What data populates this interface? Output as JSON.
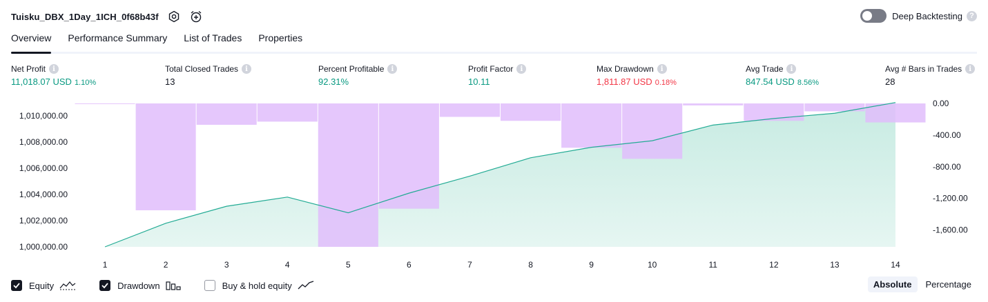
{
  "header": {
    "title": "Tuisku_DBX_1Day_1ICH_0f68b43f"
  },
  "deep_backtesting": {
    "label": "Deep Backtesting",
    "enabled": false
  },
  "tabs": [
    {
      "label": "Overview",
      "active": true
    },
    {
      "label": "Performance Summary",
      "active": false
    },
    {
      "label": "List of Trades",
      "active": false
    },
    {
      "label": "Properties",
      "active": false
    }
  ],
  "metrics": {
    "net_profit": {
      "label": "Net Profit",
      "value": "11,018.07 USD",
      "pct": "1.10%"
    },
    "total_closed_trades": {
      "label": "Total Closed Trades",
      "value": "13"
    },
    "percent_profitable": {
      "label": "Percent Profitable",
      "value": "92.31%"
    },
    "profit_factor": {
      "label": "Profit Factor",
      "value": "10.11"
    },
    "max_drawdown": {
      "label": "Max Drawdown",
      "value": "1,811.87 USD",
      "pct": "0.18%"
    },
    "avg_trade": {
      "label": "Avg Trade",
      "value": "847.54 USD",
      "pct": "8.56%"
    },
    "avg_bars": {
      "label": "Avg # Bars in Trades",
      "value": "28"
    }
  },
  "colors": {
    "equity_line": "#22ab94",
    "equity_fill": "#c7ebe2",
    "drawdown_fill": "#e1bdfb",
    "positive": "#089981",
    "negative": "#f23645"
  },
  "chart_data": {
    "type": "area",
    "x": [
      1,
      2,
      3,
      4,
      5,
      6,
      7,
      8,
      9,
      10,
      11,
      12,
      13,
      14
    ],
    "left_axis": {
      "ticks": [
        "1,010,000.00",
        "1,008,000.00",
        "1,006,000.00",
        "1,004,000.00",
        "1,002,000.00",
        "1,000,000.00"
      ],
      "tick_values": [
        1010000,
        1008000,
        1006000,
        1004000,
        1002000,
        1000000
      ],
      "range": [
        1000000,
        1010950
      ]
    },
    "right_axis": {
      "ticks": [
        "0.00",
        "-400.00",
        "-800.00",
        "-1,200.00",
        "-1,600.00"
      ],
      "tick_values": [
        0,
        -400,
        -800,
        -1200,
        -1600
      ],
      "range": [
        -1812,
        0
      ]
    },
    "series": [
      {
        "name": "Equity",
        "kind": "line",
        "axis": "left",
        "values": [
          1000000,
          1001800,
          1003100,
          1003800,
          1002600,
          1004100,
          1005400,
          1006800,
          1007600,
          1008100,
          1009300,
          1009800,
          1010200,
          1011018
        ]
      },
      {
        "name": "Drawdown",
        "kind": "bar",
        "axis": "right",
        "values": [
          -8,
          -1350,
          -270,
          -230,
          -1812,
          -1330,
          -170,
          -220,
          -560,
          -700,
          -25,
          -220,
          -100,
          -240
        ]
      }
    ]
  },
  "legend": [
    {
      "label": "Equity",
      "checked": true,
      "icon": "equity-line-icon"
    },
    {
      "label": "Drawdown",
      "checked": true,
      "icon": "drawdown-bars-icon"
    },
    {
      "label": "Buy & hold equity",
      "checked": false,
      "icon": "buy-hold-line-icon"
    }
  ],
  "mode": {
    "absolute_label": "Absolute",
    "percentage_label": "Percentage",
    "selected": "Absolute"
  }
}
